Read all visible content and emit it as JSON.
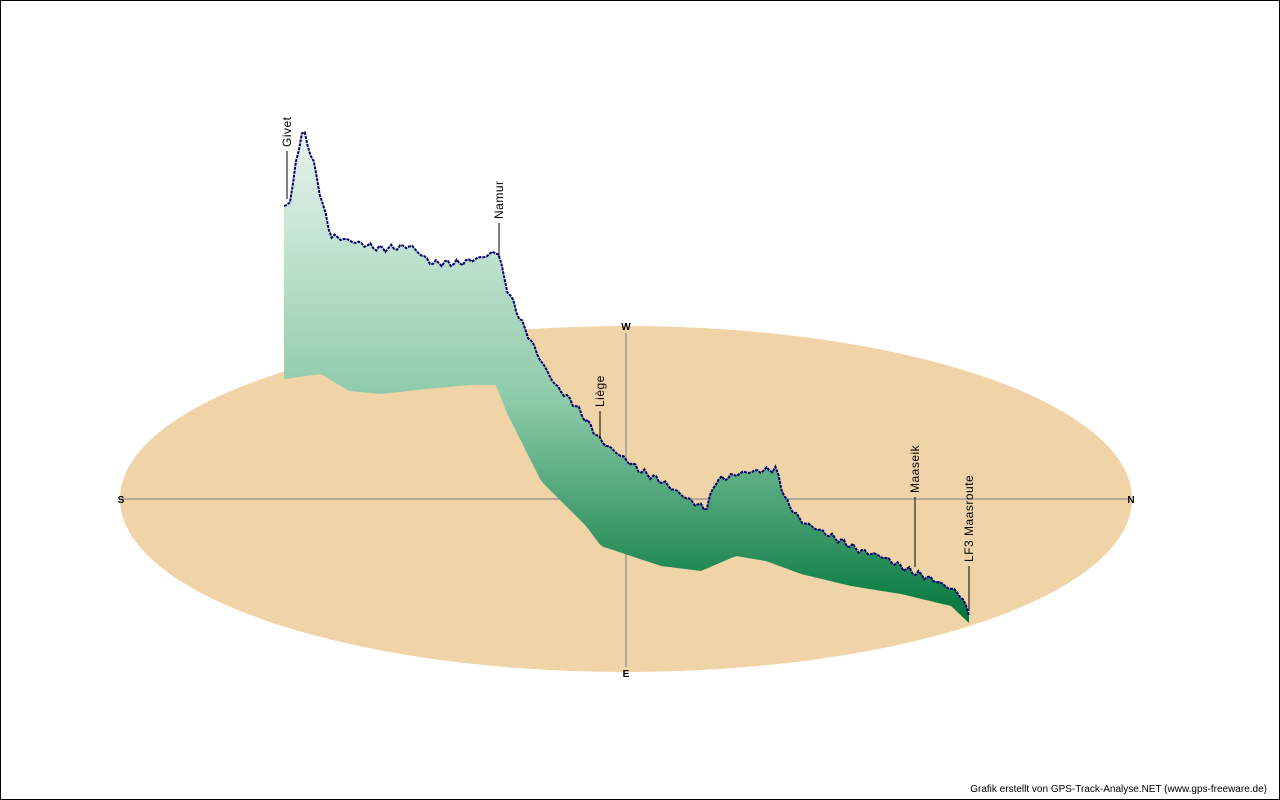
{
  "chart_data": {
    "type": "area",
    "subtype": "3d-elevation-profile-on-compass-ellipse",
    "compass": {
      "north": "N",
      "south": "S",
      "east": "E",
      "west": "W"
    },
    "waypoints": [
      {
        "name": "Givet",
        "track_fraction": 0.0
      },
      {
        "name": "Namur",
        "track_fraction": 0.3
      },
      {
        "name": "Liège",
        "track_fraction": 0.46
      },
      {
        "name": "Maaseik",
        "track_fraction": 0.92
      },
      {
        "name": "LF3 Maasroute",
        "track_fraction": 0.995
      }
    ],
    "colors": {
      "ground": "#f0d3a6",
      "axis": "#7a7a8c",
      "profile_line": "#00006e",
      "fill_top": "#e9f4ee",
      "fill_bottom": "#00753a",
      "waypoint_line": "#000000"
    }
  },
  "credit": "Grafik erstellt von GPS-Track-Analyse.NET (www.gps-freeware.de)"
}
